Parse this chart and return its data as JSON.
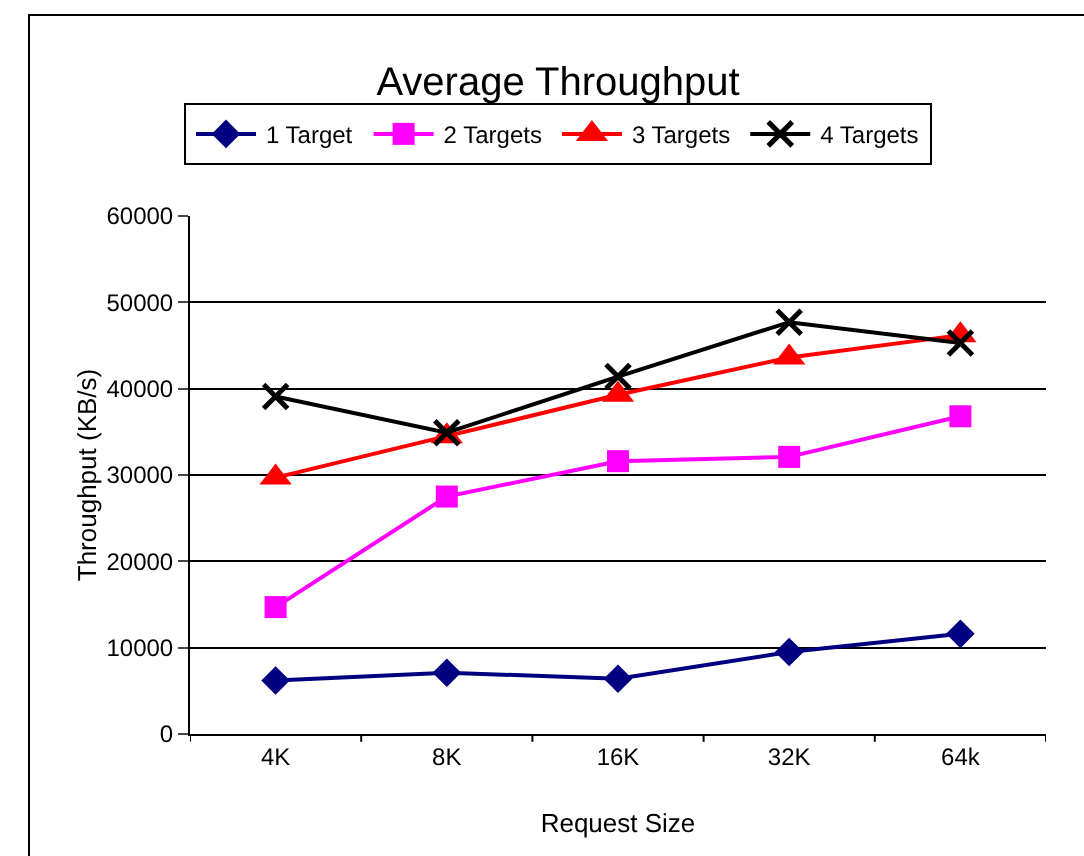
{
  "chart_data": {
    "type": "line",
    "title": "Average Throughput",
    "xlabel": "Request Size",
    "ylabel": "Throughput (KB/s)",
    "categories": [
      "4K",
      "8K",
      "16K",
      "32K",
      "64k"
    ],
    "series": [
      {
        "name": "1 Target",
        "color": "#000080",
        "marker": "diamond",
        "values": [
          6200,
          7100,
          6400,
          9500,
          11600
        ]
      },
      {
        "name": "2 Targets",
        "color": "#ff00ff",
        "marker": "square",
        "values": [
          14700,
          27500,
          31600,
          32100,
          36800
        ]
      },
      {
        "name": "3 Targets",
        "color": "#ff0000",
        "marker": "triangle",
        "values": [
          29700,
          34500,
          39300,
          43600,
          46200
        ]
      },
      {
        "name": "4 Targets",
        "color": "#000000",
        "marker": "cross",
        "values": [
          39100,
          34900,
          41400,
          47700,
          45300
        ]
      }
    ],
    "ylim": [
      0,
      60000
    ],
    "yticks": [
      0,
      10000,
      20000,
      30000,
      40000,
      50000,
      60000
    ],
    "grid": "y",
    "legend": "top",
    "line_style": "solid"
  }
}
